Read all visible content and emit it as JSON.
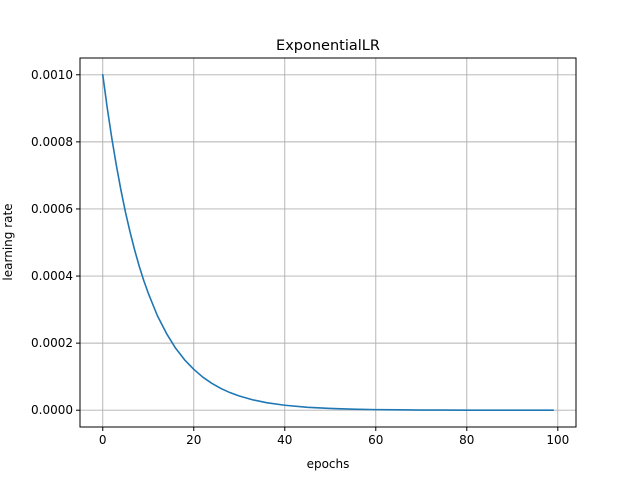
{
  "chart_data": {
    "type": "line",
    "title": "ExponentialLR",
    "xlabel": "epochs",
    "ylabel": "learning rate",
    "xlim": [
      -5,
      104
    ],
    "ylim": [
      -5e-05,
      0.00105
    ],
    "grid": true,
    "x_ticks": [
      0,
      20,
      40,
      60,
      80,
      100
    ],
    "x_tick_labels": [
      "0",
      "20",
      "40",
      "60",
      "80",
      "100"
    ],
    "y_ticks": [
      0.0,
      0.0002,
      0.0004,
      0.0006,
      0.0008,
      0.001
    ],
    "y_tick_labels": [
      "0.0000",
      "0.0002",
      "0.0004",
      "0.0006",
      "0.0008",
      "0.0010"
    ],
    "color": "#1f77b4",
    "series": [
      {
        "x": [
          0,
          1,
          2,
          3,
          4,
          5,
          6,
          7,
          8,
          9,
          10,
          12,
          14,
          16,
          18,
          20,
          22,
          24,
          26,
          28,
          30,
          33,
          36,
          40,
          45,
          50,
          55,
          60,
          65,
          70,
          75,
          80,
          85,
          90,
          95,
          99
        ],
        "y": [
          0.001,
          0.0009,
          0.00081,
          0.000729,
          0.000656,
          0.00059,
          0.000531,
          0.000478,
          0.00043,
          0.000387,
          0.000349,
          0.000282,
          0.000229,
          0.000185,
          0.00015,
          0.000122,
          9.85e-05,
          7.98e-05,
          6.46e-05,
          5.23e-05,
          4.24e-05,
          3.09e-05,
          2.25e-05,
          1.48e-05,
          8.7e-06,
          5.2e-06,
          3e-06,
          1.8e-06,
          1.1e-06,
          6e-07,
          4e-07,
          2e-07,
          1e-07,
          1e-07,
          0.0,
          0.0
        ]
      }
    ]
  }
}
